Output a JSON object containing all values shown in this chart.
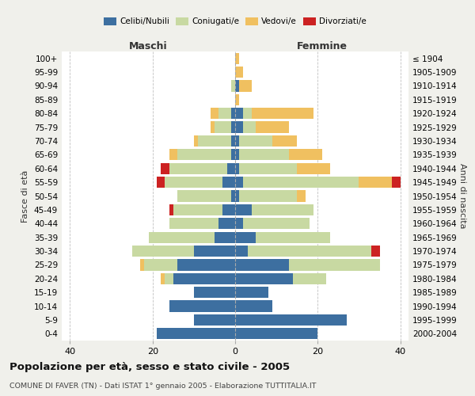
{
  "age_groups": [
    "0-4",
    "5-9",
    "10-14",
    "15-19",
    "20-24",
    "25-29",
    "30-34",
    "35-39",
    "40-44",
    "45-49",
    "50-54",
    "55-59",
    "60-64",
    "65-69",
    "70-74",
    "75-79",
    "80-84",
    "85-89",
    "90-94",
    "95-99",
    "100+"
  ],
  "birth_years": [
    "2000-2004",
    "1995-1999",
    "1990-1994",
    "1985-1989",
    "1980-1984",
    "1975-1979",
    "1970-1974",
    "1965-1969",
    "1960-1964",
    "1955-1959",
    "1950-1954",
    "1945-1949",
    "1940-1944",
    "1935-1939",
    "1930-1934",
    "1925-1929",
    "1920-1924",
    "1915-1919",
    "1910-1914",
    "1905-1909",
    "≤ 1904"
  ],
  "maschi": {
    "celibi": [
      19,
      10,
      16,
      10,
      15,
      14,
      10,
      5,
      4,
      3,
      1,
      3,
      2,
      1,
      1,
      1,
      1,
      0,
      0,
      0,
      0
    ],
    "coniugati": [
      0,
      0,
      0,
      0,
      2,
      8,
      15,
      16,
      12,
      12,
      13,
      14,
      14,
      13,
      8,
      4,
      3,
      0,
      1,
      0,
      0
    ],
    "vedovi": [
      0,
      0,
      0,
      0,
      1,
      1,
      0,
      0,
      0,
      0,
      0,
      0,
      0,
      2,
      1,
      1,
      2,
      0,
      0,
      0,
      0
    ],
    "divorziati": [
      0,
      0,
      0,
      0,
      0,
      0,
      0,
      0,
      0,
      1,
      0,
      2,
      2,
      0,
      0,
      0,
      0,
      0,
      0,
      0,
      0
    ]
  },
  "femmine": {
    "nubili": [
      20,
      27,
      9,
      8,
      14,
      13,
      3,
      5,
      2,
      4,
      1,
      2,
      1,
      1,
      1,
      2,
      2,
      0,
      1,
      0,
      0
    ],
    "coniugate": [
      0,
      0,
      0,
      0,
      8,
      22,
      30,
      18,
      16,
      15,
      14,
      28,
      14,
      12,
      8,
      3,
      2,
      0,
      0,
      0,
      0
    ],
    "vedove": [
      0,
      0,
      0,
      0,
      0,
      0,
      0,
      0,
      0,
      0,
      2,
      8,
      8,
      8,
      6,
      8,
      15,
      1,
      3,
      2,
      1
    ],
    "divorziate": [
      0,
      0,
      0,
      0,
      0,
      0,
      2,
      0,
      0,
      0,
      0,
      2,
      0,
      0,
      0,
      0,
      0,
      0,
      0,
      0,
      0
    ]
  },
  "colors": {
    "celibi": "#3d6fa0",
    "coniugati": "#c8d9a2",
    "vedovi": "#f0c060",
    "divorziati": "#cc2222"
  },
  "xlim": 42,
  "title": "Popolazione per età, sesso e stato civile - 2005",
  "subtitle": "COMUNE DI FAVER (TN) - Dati ISTAT 1° gennaio 2005 - Elaborazione TUTTITALIA.IT",
  "ylabel_left": "Fasce di età",
  "ylabel_right": "Anni di nascita",
  "xlabel_left": "Maschi",
  "xlabel_right": "Femmine",
  "bg_color": "#f0f0eb",
  "plot_bg": "#ffffff"
}
